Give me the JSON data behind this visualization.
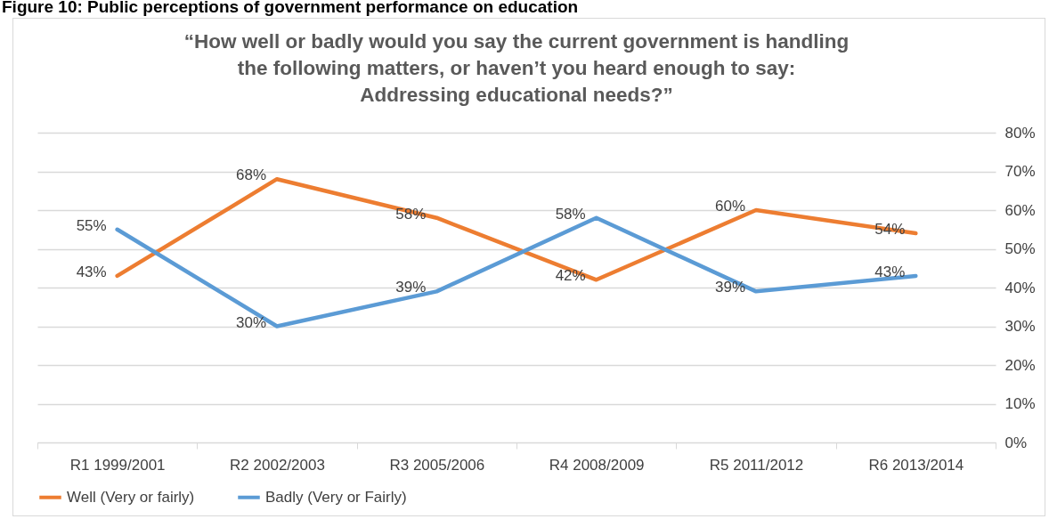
{
  "chart_data": {
    "type": "line",
    "title": "“How well or badly would you say the current government is handling the following matters, or haven’t you heard enough to say: Addressing educational needs?”",
    "annotations": [
      "Figure 10: Public perceptions of government performance on education"
    ],
    "categories": [
      "R1 1999/2001",
      "R2 2002/2003",
      "R3 2005/2006",
      "R4 2008/2009",
      "R5 2011/2012",
      "R6 2013/2014"
    ],
    "series": [
      {
        "name": "Well (Very or fairly)",
        "color": "#ed7d31",
        "values": [
          43,
          68,
          58,
          42,
          60,
          54
        ],
        "value_labels": [
          "43%",
          "68%",
          "58%",
          "42%",
          "60%",
          "54%"
        ]
      },
      {
        "name": "Badly (Very or Fairly)",
        "color": "#5b9bd5",
        "values": [
          55,
          30,
          39,
          58,
          39,
          43
        ],
        "value_labels": [
          "55%",
          "30%",
          "39%",
          "58%",
          "39%",
          "43%"
        ]
      }
    ],
    "ylim": [
      0,
      80
    ],
    "yticks": [
      {
        "value": 0,
        "label": "0%"
      },
      {
        "value": 10,
        "label": "10%"
      },
      {
        "value": 20,
        "label": "20%"
      },
      {
        "value": 30,
        "label": "30%"
      },
      {
        "value": 40,
        "label": "40%"
      },
      {
        "value": 50,
        "label": "50%"
      },
      {
        "value": 60,
        "label": "60%"
      },
      {
        "value": 70,
        "label": "70%"
      },
      {
        "value": 80,
        "label": "80%"
      }
    ],
    "grid": "y",
    "legend": "bottom",
    "marker": "none",
    "line_style": "solid"
  }
}
